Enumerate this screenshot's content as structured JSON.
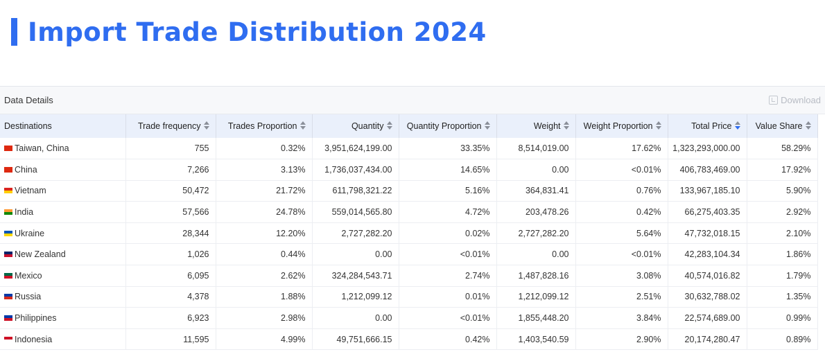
{
  "page": {
    "title": "Import Trade Distribution 2024"
  },
  "panel": {
    "title": "Data Details",
    "download_label": "Download"
  },
  "table": {
    "columns": [
      "Destinations",
      "Trade frequency",
      "Trades Proportion",
      "Quantity",
      "Quantity Proportion",
      "Weight",
      "Weight Proportion",
      "Total Price",
      "Value Share"
    ],
    "sorted_column": "Total Price",
    "sort_direction": "descending",
    "rows": [
      {
        "flag": "flag-taiwan-icon",
        "flag_colors": [
          "#de2910",
          "#de2910"
        ],
        "destination": "Taiwan, China",
        "frequency": "755",
        "trades_prop": "0.32%",
        "quantity": "3,951,624,199.00",
        "quantity_prop": "33.35%",
        "weight": "8,514,019.00",
        "weight_prop": "17.62%",
        "total_price": "1,323,293,000.00",
        "value_share": "58.29%"
      },
      {
        "flag": "flag-china-icon",
        "flag_colors": [
          "#de2910",
          "#de2910"
        ],
        "destination": "China",
        "frequency": "7,266",
        "trades_prop": "3.13%",
        "quantity": "1,736,037,434.00",
        "quantity_prop": "14.65%",
        "weight": "0.00",
        "weight_prop": "<0.01%",
        "total_price": "406,783,469.00",
        "value_share": "17.92%"
      },
      {
        "flag": "flag-vietnam-icon",
        "flag_colors": [
          "#da251d",
          "#ffcd00"
        ],
        "destination": "Vietnam",
        "frequency": "50,472",
        "trades_prop": "21.72%",
        "quantity": "611,798,321.22",
        "quantity_prop": "5.16%",
        "weight": "364,831.41",
        "weight_prop": "0.76%",
        "total_price": "133,967,185.10",
        "value_share": "5.90%"
      },
      {
        "flag": "flag-india-icon",
        "flag_colors": [
          "#ff9933",
          "#138808"
        ],
        "destination": "India",
        "frequency": "57,566",
        "trades_prop": "24.78%",
        "quantity": "559,014,565.80",
        "quantity_prop": "4.72%",
        "weight": "203,478.26",
        "weight_prop": "0.42%",
        "total_price": "66,275,403.35",
        "value_share": "2.92%"
      },
      {
        "flag": "flag-ukraine-icon",
        "flag_colors": [
          "#0057b7",
          "#ffd700"
        ],
        "destination": "Ukraine",
        "frequency": "28,344",
        "trades_prop": "12.20%",
        "quantity": "2,727,282.20",
        "quantity_prop": "0.02%",
        "weight": "2,727,282.20",
        "weight_prop": "5.64%",
        "total_price": "47,732,018.15",
        "value_share": "2.10%"
      },
      {
        "flag": "flag-new-zealand-icon",
        "flag_colors": [
          "#012169",
          "#c8102e"
        ],
        "destination": "New Zealand",
        "frequency": "1,026",
        "trades_prop": "0.44%",
        "quantity": "0.00",
        "quantity_prop": "<0.01%",
        "weight": "0.00",
        "weight_prop": "<0.01%",
        "total_price": "42,283,104.34",
        "value_share": "1.86%"
      },
      {
        "flag": "flag-mexico-icon",
        "flag_colors": [
          "#006847",
          "#ce1126"
        ],
        "destination": "Mexico",
        "frequency": "6,095",
        "trades_prop": "2.62%",
        "quantity": "324,284,543.71",
        "quantity_prop": "2.74%",
        "weight": "1,487,828.16",
        "weight_prop": "3.08%",
        "total_price": "40,574,016.82",
        "value_share": "1.79%"
      },
      {
        "flag": "flag-russia-icon",
        "flag_colors": [
          "#0039a6",
          "#d52b1e"
        ],
        "destination": "Russia",
        "frequency": "4,378",
        "trades_prop": "1.88%",
        "quantity": "1,212,099.12",
        "quantity_prop": "0.01%",
        "weight": "1,212,099.12",
        "weight_prop": "2.51%",
        "total_price": "30,632,788.02",
        "value_share": "1.35%"
      },
      {
        "flag": "flag-philippines-icon",
        "flag_colors": [
          "#0038a8",
          "#ce1126"
        ],
        "destination": "Philippines",
        "frequency": "6,923",
        "trades_prop": "2.98%",
        "quantity": "0.00",
        "quantity_prop": "<0.01%",
        "weight": "1,855,448.20",
        "weight_prop": "3.84%",
        "total_price": "22,574,689.00",
        "value_share": "0.99%"
      },
      {
        "flag": "flag-indonesia-icon",
        "flag_colors": [
          "#ce1126",
          "#ffffff"
        ],
        "destination": "Indonesia",
        "frequency": "11,595",
        "trades_prop": "4.99%",
        "quantity": "49,751,666.15",
        "quantity_prop": "0.42%",
        "weight": "1,403,540.59",
        "weight_prop": "2.90%",
        "total_price": "20,174,280.47",
        "value_share": "0.89%"
      }
    ]
  },
  "colors": {
    "accent": "#2f6df0",
    "header_bg": "#eaf0fb"
  }
}
